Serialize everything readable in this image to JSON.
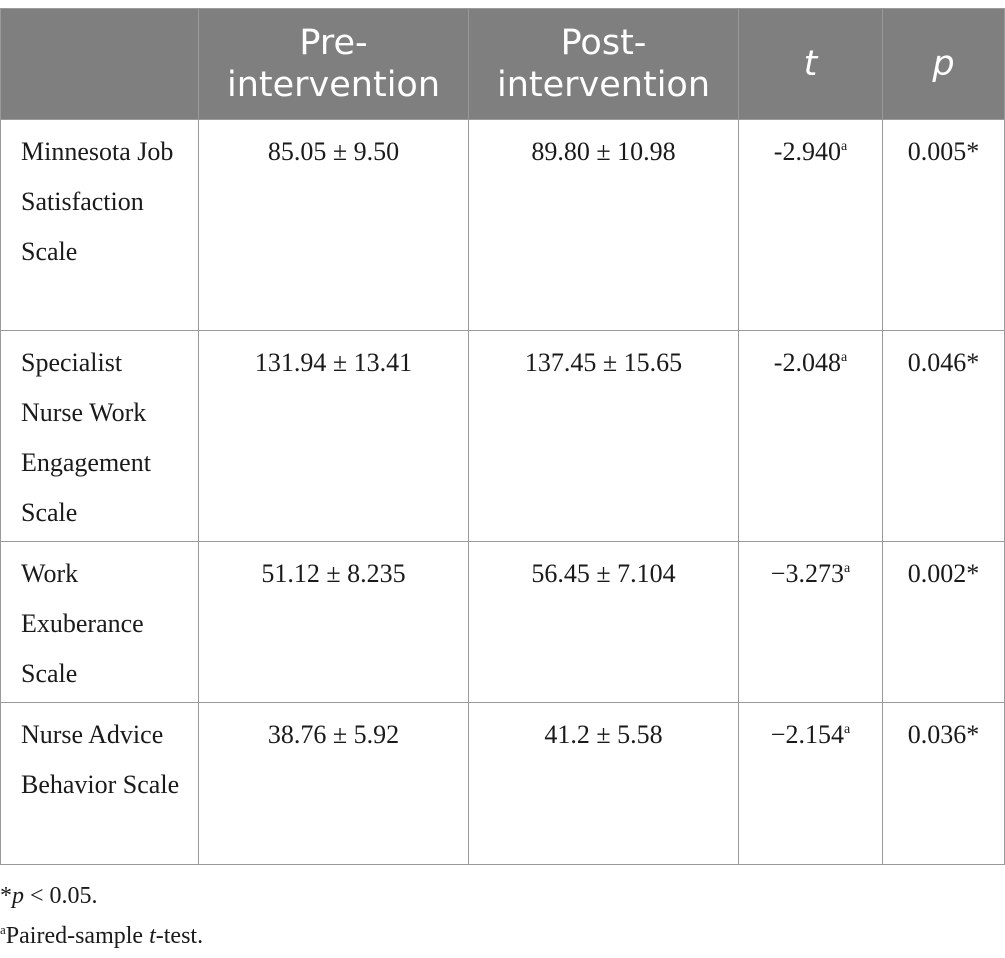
{
  "table": {
    "headers": {
      "blank": "",
      "pre": "Pre-intervention",
      "post": "Post-intervention",
      "t": "t",
      "p": "p"
    },
    "rows": [
      {
        "label": "Minnesota Job Satisfaction Scale",
        "pre": "85.05 ± 9.50",
        "post": "89.80 ± 10.98",
        "t": "-2.940",
        "t_marker": "a",
        "p": "0.005*"
      },
      {
        "label": "Specialist Nurse Work Engagement Scale",
        "pre": "131.94 ± 13.41",
        "post": "137.45 ± 15.65",
        "t": "-2.048",
        "t_marker": "a",
        "p": "0.046*"
      },
      {
        "label": "Work Exuberance Scale",
        "pre": "51.12 ± 8.235",
        "post": "56.45 ± 7.104",
        "t": "−3.273",
        "t_marker": "a",
        "p": "0.002*"
      },
      {
        "label": "Nurse Advice Behavior Scale",
        "pre": "38.76 ± 5.92",
        "post": "41.2 ± 5.58",
        "t": "−2.154",
        "t_marker": "a",
        "p": "0.036*"
      }
    ]
  },
  "footnotes": {
    "significance": {
      "star": "*",
      "var": "p",
      "text": " < 0.05."
    },
    "test": {
      "marker": "a",
      "prefix": "Paired-sample ",
      "var": "t",
      "suffix": "-test."
    }
  },
  "colors": {
    "header_bg": "#7f7f7f",
    "header_text": "#ffffff",
    "border": "#9a9a9a"
  }
}
